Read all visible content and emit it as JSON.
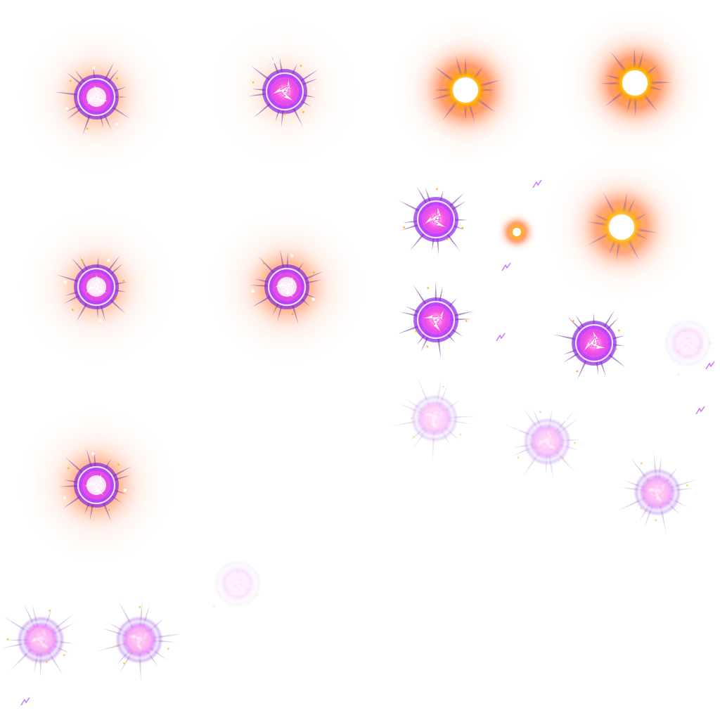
{
  "sheet": {
    "background": "#ffffff",
    "colors": {
      "halo": "#ff7a3c",
      "halo_soft": "#ffd2bf",
      "core_hot": "#fff6e8",
      "ember": "#ffb000",
      "violet": "#b23cff",
      "violet_deep": "#7a18d8",
      "magenta": "#ff4fe0",
      "spike": "#8e5fb0",
      "white": "#ffffff"
    },
    "frames": [
      {
        "id": "f01",
        "variant": "rune-burst",
        "intensity": 1.0,
        "halo": 0.55,
        "phase": 0
      },
      {
        "id": "f02",
        "variant": "rune-burst",
        "intensity": 1.0,
        "halo": 0.25,
        "phase": 30
      },
      {
        "id": "f03",
        "variant": "fire-flash",
        "intensity": 1.0,
        "halo": 1.0,
        "phase": 0
      },
      {
        "id": "f04",
        "variant": "fire-flash",
        "intensity": 1.0,
        "halo": 1.0,
        "phase": 15
      },
      {
        "id": "f05",
        "variant": "rune-burst",
        "intensity": 1.0,
        "halo": 0.55,
        "phase": 10
      },
      {
        "id": "f06",
        "variant": "rune-burst",
        "intensity": 1.0,
        "halo": 0.8,
        "phase": 40
      },
      {
        "id": "f07",
        "variant": "rune-burst",
        "intensity": 1.0,
        "halo": 0.0,
        "phase": 20
      },
      {
        "id": "f08",
        "variant": "ember",
        "intensity": 1.0,
        "halo": 0.4,
        "phase": 0
      },
      {
        "id": "f09",
        "variant": "fire-flash",
        "intensity": 0.9,
        "halo": 1.0,
        "phase": 25
      },
      {
        "id": "f10",
        "variant": "rune-burst",
        "intensity": 1.0,
        "halo": 0.0,
        "phase": 50
      },
      {
        "id": "f11",
        "variant": "rune-burst",
        "intensity": 1.0,
        "halo": 0.0,
        "phase": 5
      },
      {
        "id": "f12",
        "variant": "rune-ghost",
        "intensity": 0.35,
        "halo": 0.0,
        "phase": 0
      },
      {
        "id": "f13",
        "variant": "rune-burst",
        "intensity": 1.0,
        "halo": 0.75,
        "phase": 35
      },
      {
        "id": "f14",
        "variant": "rune-fade",
        "intensity": 0.45,
        "halo": 0.0,
        "phase": 60
      },
      {
        "id": "f15",
        "variant": "rune-fade",
        "intensity": 0.55,
        "halo": 0.0,
        "phase": 15
      },
      {
        "id": "f16",
        "variant": "rune-fade",
        "intensity": 0.7,
        "halo": 0.0,
        "phase": 45
      },
      {
        "id": "f17",
        "variant": "rune-ghost",
        "intensity": 0.3,
        "halo": 0.0,
        "phase": 10
      },
      {
        "id": "f18",
        "variant": "rune-fade",
        "intensity": 0.8,
        "halo": 0.0,
        "phase": 25
      },
      {
        "id": "f19",
        "variant": "rune-fade",
        "intensity": 0.8,
        "halo": 0.0,
        "phase": 55
      }
    ],
    "sparks": [
      {
        "id": "s01"
      },
      {
        "id": "s02"
      },
      {
        "id": "s03"
      },
      {
        "id": "s04"
      },
      {
        "id": "s05"
      },
      {
        "id": "s06"
      }
    ]
  }
}
